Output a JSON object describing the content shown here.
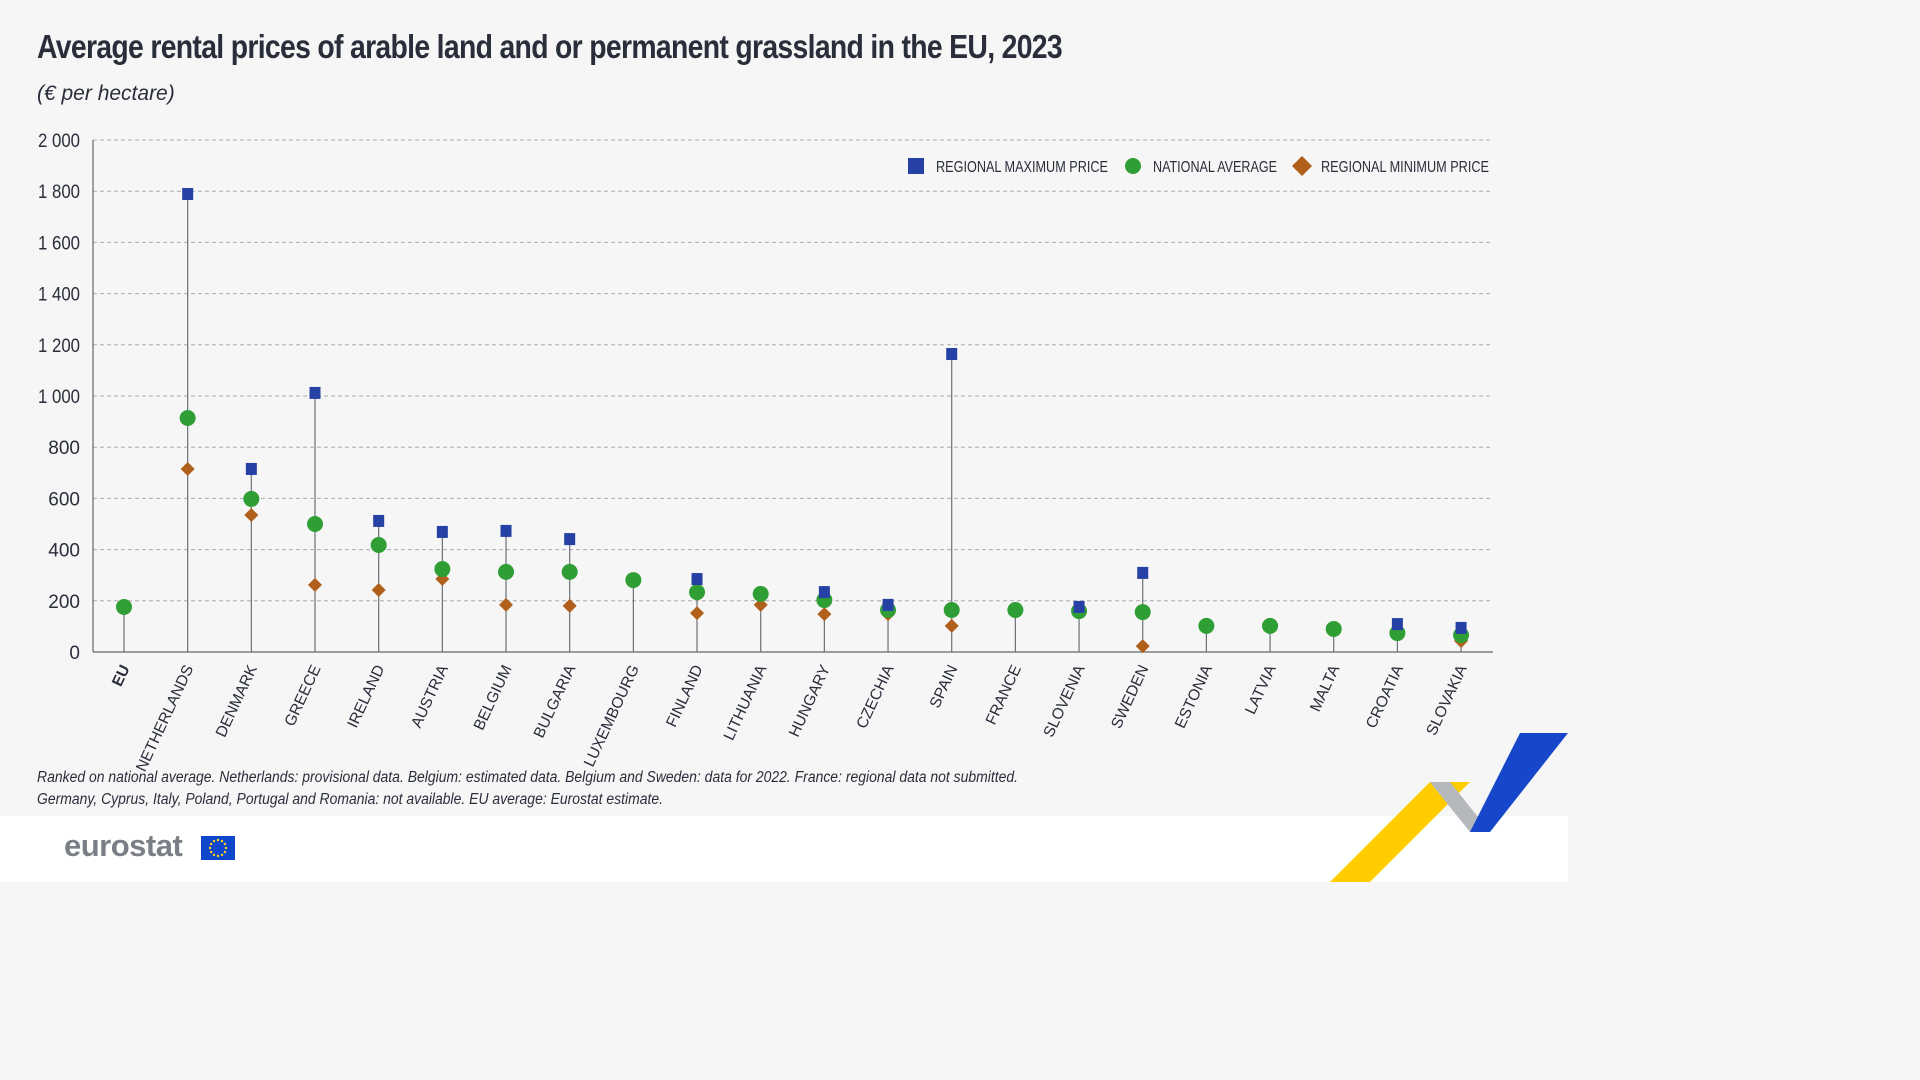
{
  "title": "Average rental prices of arable land and or permanent grassland in the EU, 2023",
  "subtitle": "(€ per hectare)",
  "notes": [
    "Ranked on national average. Netherlands: provisional data. Belgium: estimated data. Belgium and Sweden: data for 2022. France: regional data not submitted.",
    "Germany, Cyprus, Italy, Poland, Portugal and Romania: not available. EU average: Eurostat estimate."
  ],
  "logo": "eurostat",
  "colors": {
    "max": "#2541a6",
    "avg": "#2f9e35",
    "min": "#b0601a",
    "background": "#f6f6f6"
  },
  "chart_data": {
    "type": "scatter",
    "title": "Average rental prices of arable land and or permanent grassland in the EU, 2023",
    "ylabel": "(€ per hectare)",
    "ylim": [
      0,
      2000
    ],
    "yticks": [
      "0",
      "200",
      "400",
      "600",
      "800",
      "1 000",
      "1 200",
      "1 400",
      "1 600",
      "1 800",
      "2 000"
    ],
    "grid": true,
    "legend_placement": "top-right",
    "categories": [
      "EU",
      "NETHERLANDS",
      "DENMARK",
      "GREECE",
      "IRELAND",
      "AUSTRIA",
      "BELGIUM",
      "BULGARIA",
      "LUXEMBOURG",
      "FINLAND",
      "LITHUANIA",
      "HUNGARY",
      "CZECHIA",
      "SPAIN",
      "FRANCE",
      "SLOVENIA",
      "SWEDEN",
      "ESTONIA",
      "LATVIA",
      "MALTA",
      "CROATIA",
      "SLOVAKIA"
    ],
    "series": [
      {
        "name": "REGIONAL MAXIMUM PRICE",
        "marker": "square",
        "values": [
          null,
          1789,
          715,
          1012,
          512,
          469,
          473,
          441,
          null,
          285,
          null,
          234,
          184,
          1164,
          null,
          176,
          309,
          null,
          null,
          null,
          109,
          94
        ]
      },
      {
        "name": "NATIONAL AVERAGE",
        "marker": "circle",
        "values": [
          176,
          914,
          598,
          500,
          418,
          324,
          313,
          313,
          281,
          234,
          227,
          203,
          164,
          164,
          164,
          160,
          156,
          102,
          102,
          90,
          74,
          66
        ]
      },
      {
        "name": "REGIONAL MINIMUM PRICE",
        "marker": "diamond",
        "values": [
          null,
          715,
          535,
          262,
          242,
          285,
          184,
          180,
          null,
          152,
          184,
          148,
          148,
          102,
          null,
          null,
          23,
          null,
          null,
          null,
          null,
          43
        ]
      }
    ]
  }
}
